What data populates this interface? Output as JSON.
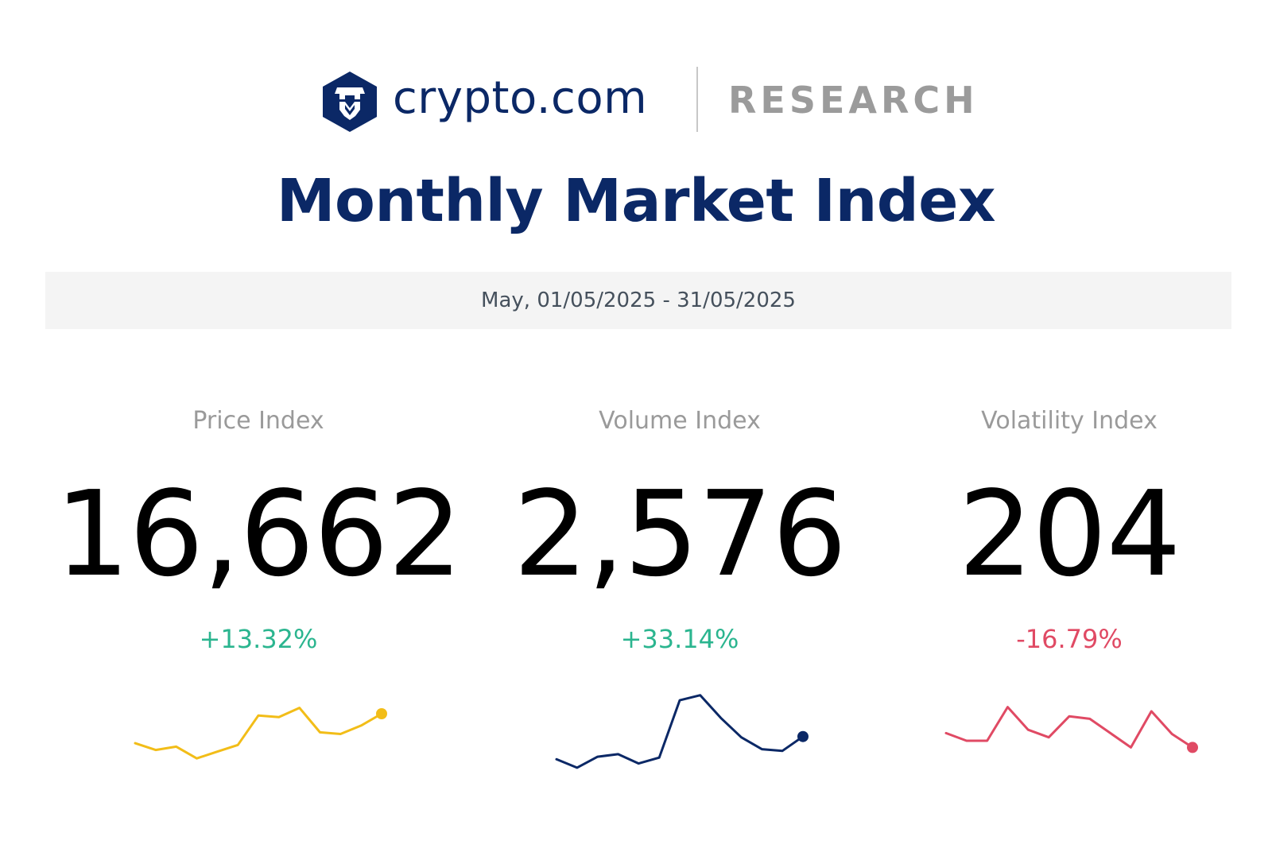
{
  "header": {
    "brand": "crypto.com",
    "section": "RESEARCH",
    "brand_color": "#0b2866",
    "section_color": "#9b9b9b"
  },
  "title": "Monthly Market Index",
  "date_range": "May, 01/05/2025 - 31/05/2025",
  "chart_data": [
    {
      "type": "line",
      "title": "Price Index",
      "headline_value": "16,662",
      "change": "+13.32%",
      "change_color": "#2bb58f",
      "line_color": "#f2bd18",
      "values": [
        31,
        23,
        27,
        13,
        21,
        29,
        64,
        62,
        73,
        44,
        42,
        52,
        66
      ]
    },
    {
      "type": "line",
      "title": "Volume Index",
      "headline_value": "2,576",
      "change": "+33.14%",
      "change_color": "#2bb58f",
      "line_color": "#0b2866",
      "values": [
        12,
        2,
        15,
        18,
        7,
        14,
        82,
        88,
        61,
        38,
        24,
        22,
        39
      ]
    },
    {
      "type": "line",
      "title": "Volatility Index",
      "headline_value": "204",
      "change": "-16.79%",
      "change_color": "#e04a64",
      "line_color": "#e04a64",
      "values": [
        43,
        34,
        34,
        74,
        47,
        38,
        63,
        60,
        43,
        26,
        69,
        42,
        26
      ]
    }
  ]
}
